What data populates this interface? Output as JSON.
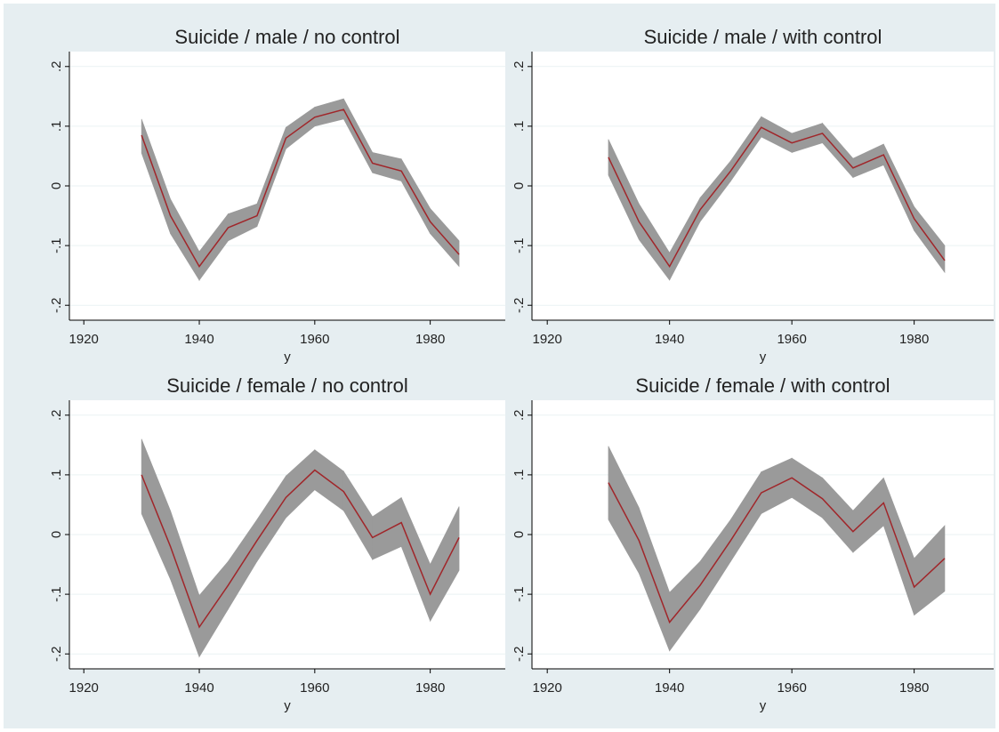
{
  "chart_data": [
    {
      "type": "line",
      "title": "Suicide / male / no control",
      "xlabel": "y",
      "x": [
        1930,
        1935,
        1940,
        1945,
        1950,
        1955,
        1960,
        1965,
        1970,
        1975,
        1980,
        1985
      ],
      "values": [
        0.085,
        -0.05,
        -0.135,
        -0.07,
        -0.05,
        0.08,
        0.115,
        0.128,
        0.038,
        0.025,
        -0.06,
        -0.115
      ],
      "lower": [
        0.055,
        -0.08,
        -0.158,
        -0.092,
        -0.068,
        0.062,
        0.1,
        0.112,
        0.022,
        0.008,
        -0.08,
        -0.135
      ],
      "upper": [
        0.112,
        -0.022,
        -0.11,
        -0.047,
        -0.03,
        0.098,
        0.132,
        0.146,
        0.056,
        0.045,
        -0.038,
        -0.092
      ],
      "color": "#a0262a",
      "band_color": "#9a9a9a",
      "xlim": [
        1917.5,
        1993
      ],
      "ylim": [
        -0.225,
        0.225
      ],
      "xticks": [
        1920,
        1940,
        1960,
        1980
      ],
      "yticks": [
        {
          "value": -0.2,
          "label": "-.2"
        },
        {
          "value": -0.1,
          "label": "-.1"
        },
        0,
        {
          "value": 0.1,
          "label": ".1"
        },
        {
          "value": 0.2,
          "label": ".2"
        }
      ],
      "grid": true
    },
    {
      "type": "line",
      "title": "Suicide / male / with control",
      "xlabel": "y",
      "x": [
        1930,
        1935,
        1940,
        1945,
        1950,
        1955,
        1960,
        1965,
        1970,
        1975,
        1980,
        1985
      ],
      "values": [
        0.048,
        -0.06,
        -0.135,
        -0.04,
        0.025,
        0.098,
        0.072,
        0.088,
        0.03,
        0.052,
        -0.055,
        -0.125
      ],
      "lower": [
        0.018,
        -0.09,
        -0.158,
        -0.06,
        0.008,
        0.082,
        0.056,
        0.072,
        0.014,
        0.035,
        -0.075,
        -0.145
      ],
      "upper": [
        0.078,
        -0.03,
        -0.112,
        -0.02,
        0.042,
        0.116,
        0.088,
        0.105,
        0.046,
        0.07,
        -0.035,
        -0.1
      ],
      "color": "#a0262a",
      "band_color": "#9a9a9a",
      "xlim": [
        1917.5,
        1993
      ],
      "ylim": [
        -0.225,
        0.225
      ],
      "xticks": [
        1920,
        1940,
        1960,
        1980
      ],
      "yticks": [
        {
          "value": -0.2,
          "label": "-.2"
        },
        {
          "value": -0.1,
          "label": "-.1"
        },
        0,
        {
          "value": 0.1,
          "label": ".1"
        },
        {
          "value": 0.2,
          "label": ".2"
        }
      ],
      "grid": true
    },
    {
      "type": "line",
      "title": "Suicide / female / no control",
      "xlabel": "y",
      "x": [
        1930,
        1935,
        1940,
        1945,
        1950,
        1955,
        1960,
        1965,
        1970,
        1975,
        1980,
        1985
      ],
      "values": [
        0.1,
        -0.02,
        -0.155,
        -0.085,
        -0.01,
        0.062,
        0.108,
        0.072,
        -0.005,
        0.02,
        -0.1,
        -0.005
      ],
      "lower": [
        0.035,
        -0.075,
        -0.205,
        -0.125,
        -0.045,
        0.028,
        0.075,
        0.04,
        -0.042,
        -0.02,
        -0.145,
        -0.06
      ],
      "upper": [
        0.16,
        0.04,
        -0.102,
        -0.045,
        0.025,
        0.098,
        0.142,
        0.106,
        0.03,
        0.062,
        -0.05,
        0.047
      ],
      "color": "#a0262a",
      "band_color": "#9a9a9a",
      "xlim": [
        1917.5,
        1993
      ],
      "ylim": [
        -0.225,
        0.225
      ],
      "xticks": [
        1920,
        1940,
        1960,
        1980
      ],
      "yticks": [
        {
          "value": -0.2,
          "label": "-.2"
        },
        {
          "value": -0.1,
          "label": "-.1"
        },
        0,
        {
          "value": 0.1,
          "label": ".1"
        },
        {
          "value": 0.2,
          "label": ".2"
        }
      ],
      "grid": true
    },
    {
      "type": "line",
      "title": "Suicide / female / with control",
      "xlabel": "y",
      "x": [
        1930,
        1935,
        1940,
        1945,
        1950,
        1955,
        1960,
        1965,
        1970,
        1975,
        1980,
        1985
      ],
      "values": [
        0.087,
        -0.01,
        -0.147,
        -0.085,
        -0.01,
        0.07,
        0.095,
        0.06,
        0.005,
        0.053,
        -0.088,
        -0.04
      ],
      "lower": [
        0.025,
        -0.065,
        -0.195,
        -0.125,
        -0.045,
        0.035,
        0.062,
        0.028,
        -0.03,
        0.015,
        -0.135,
        -0.095
      ],
      "upper": [
        0.148,
        0.045,
        -0.097,
        -0.045,
        0.025,
        0.105,
        0.128,
        0.095,
        0.04,
        0.095,
        -0.04,
        0.015
      ],
      "color": "#a0262a",
      "band_color": "#9a9a9a",
      "xlim": [
        1917.5,
        1993
      ],
      "ylim": [
        -0.225,
        0.225
      ],
      "xticks": [
        1920,
        1940,
        1960,
        1980
      ],
      "yticks": [
        {
          "value": -0.2,
          "label": "-.2"
        },
        {
          "value": -0.1,
          "label": "-.1"
        },
        0,
        {
          "value": 0.1,
          "label": ".1"
        },
        {
          "value": 0.2,
          "label": ".2"
        }
      ],
      "grid": true
    }
  ]
}
